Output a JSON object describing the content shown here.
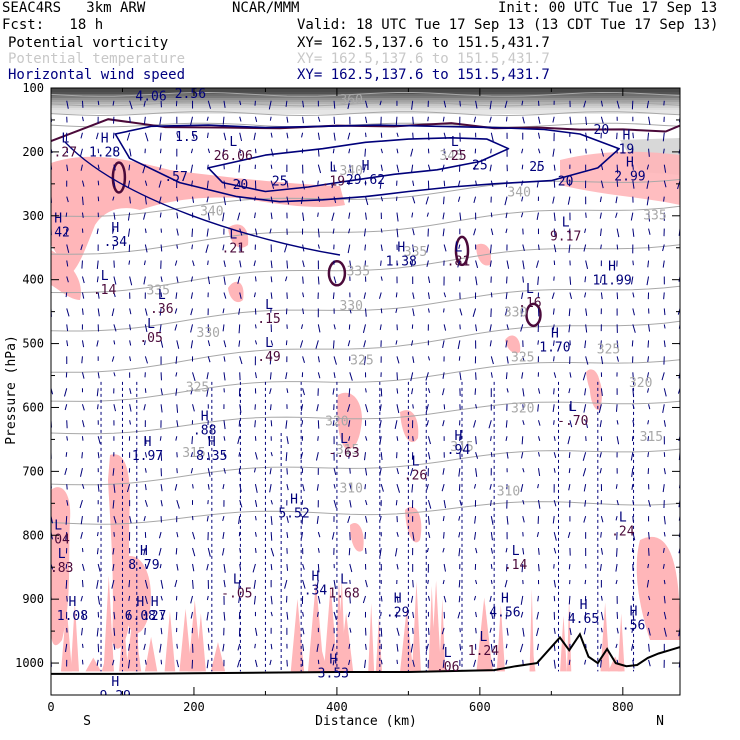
{
  "header": {
    "project": "SEAC4RS   3km ARW",
    "center": "NCAR/MMM",
    "init": "Init: 00 UTC Tue 17 Sep 13",
    "fcst": "Fcst:   18 h",
    "valid": "Valid: 18 UTC Tue 17 Sep 13 (13 CDT Tue 17 Sep 13)",
    "fields": [
      {
        "name": "Potential vorticity",
        "xy": "XY= 162.5,137.6 to 151.5,431.7",
        "color": "#000000"
      },
      {
        "name": "Potential temperature",
        "xy": "XY= 162.5,137.6 to 151.5,431.7",
        "color": "#c8c8c8"
      },
      {
        "name": "Horizontal wind speed",
        "xy": "XY= 162.5,137.6 to 151.5,431.7",
        "color": "#000080"
      }
    ]
  },
  "colors": {
    "pv_shade": "#ffb6b9",
    "theta": "#a8a8a8",
    "wind": "#00007a",
    "pv_contour": "#4b0a3a",
    "terrain": "#000000",
    "strat": "#6a6a6a"
  },
  "chart_data": {
    "type": "cross-section",
    "xlabel": "Distance (km)",
    "ylabel": "Pressure (hPa)",
    "xlim": [
      0,
      880
    ],
    "ylim": [
      1050,
      100
    ],
    "xticks": [
      0,
      200,
      400,
      600,
      800
    ],
    "yticks": [
      100,
      200,
      300,
      400,
      500,
      600,
      700,
      800,
      900,
      1000
    ],
    "end_labels": {
      "left": "S",
      "right": "N"
    },
    "theta_labels": [
      {
        "x": 420,
        "p": 117,
        "text": "360"
      },
      {
        "x": 560,
        "p": 205,
        "text": "345"
      },
      {
        "x": 420,
        "p": 228,
        "text": "340"
      },
      {
        "x": 655,
        "p": 262,
        "text": "340"
      },
      {
        "x": 225,
        "p": 292,
        "text": "340"
      },
      {
        "x": 845,
        "p": 298,
        "text": "335"
      },
      {
        "x": 510,
        "p": 355,
        "text": "335"
      },
      {
        "x": 430,
        "p": 386,
        "text": "335"
      },
      {
        "x": 150,
        "p": 415,
        "text": "335"
      },
      {
        "x": 420,
        "p": 440,
        "text": "330"
      },
      {
        "x": 650,
        "p": 450,
        "text": "330"
      },
      {
        "x": 220,
        "p": 482,
        "text": "330"
      },
      {
        "x": 660,
        "p": 520,
        "text": "325"
      },
      {
        "x": 435,
        "p": 525,
        "text": "325"
      },
      {
        "x": 780,
        "p": 508,
        "text": "325"
      },
      {
        "x": 205,
        "p": 567,
        "text": "325"
      },
      {
        "x": 825,
        "p": 560,
        "text": "320"
      },
      {
        "x": 660,
        "p": 600,
        "text": "320"
      },
      {
        "x": 400,
        "p": 620,
        "text": "320"
      },
      {
        "x": 840,
        "p": 645,
        "text": "315"
      },
      {
        "x": 415,
        "p": 665,
        "text": "315"
      },
      {
        "x": 575,
        "p": 660,
        "text": "315"
      },
      {
        "x": 200,
        "p": 670,
        "text": "315"
      },
      {
        "x": 420,
        "p": 725,
        "text": "310"
      },
      {
        "x": 640,
        "p": 730,
        "text": "310"
      }
    ],
    "wind_labels": [
      {
        "x": 140,
        "p": 112,
        "text": "4.06"
      },
      {
        "x": 195,
        "p": 108,
        "text": "2.56"
      },
      {
        "x": 190,
        "p": 175,
        "text": "1.5"
      },
      {
        "x": 175,
        "p": 238,
        "text": ".57"
      },
      {
        "x": 265,
        "p": 250,
        "text": "20"
      },
      {
        "x": 320,
        "p": 245,
        "text": "25"
      },
      {
        "x": 770,
        "p": 164,
        "text": "20"
      },
      {
        "x": 720,
        "p": 245,
        "text": "20"
      },
      {
        "x": 680,
        "p": 222,
        "text": "25"
      },
      {
        "x": 600,
        "p": 220,
        "text": "25"
      }
    ],
    "extrema": [
      {
        "x": 20,
        "p": 195,
        "kind": "L",
        "value": ".27"
      },
      {
        "x": 75,
        "p": 195,
        "kind": "H",
        "value": "1.28"
      },
      {
        "x": 255,
        "p": 200,
        "kind": "L",
        "value": "26.06"
      },
      {
        "x": 565,
        "p": 200,
        "kind": "L",
        "value": ".25"
      },
      {
        "x": 805,
        "p": 190,
        "kind": "H",
        "value": "19"
      },
      {
        "x": 810,
        "p": 232,
        "kind": "H",
        "value": "2.99"
      },
      {
        "x": 395,
        "p": 240,
        "kind": "L",
        "value": ".19"
      },
      {
        "x": 440,
        "p": 238,
        "kind": "H",
        "value": "29.62"
      },
      {
        "x": 10,
        "p": 320,
        "kind": "H",
        "value": ".42"
      },
      {
        "x": 90,
        "p": 335,
        "kind": "H",
        "value": ".34"
      },
      {
        "x": 255,
        "p": 345,
        "kind": "L",
        "value": ".21"
      },
      {
        "x": 720,
        "p": 326,
        "kind": "L",
        "value": "9.17"
      },
      {
        "x": 490,
        "p": 365,
        "kind": "H",
        "value": "1.38"
      },
      {
        "x": 570,
        "p": 365,
        "kind": "L",
        "value": ".81"
      },
      {
        "x": 785,
        "p": 395,
        "kind": "H",
        "value": "11.99"
      },
      {
        "x": 75,
        "p": 410,
        "kind": "L",
        "value": ".14"
      },
      {
        "x": 155,
        "p": 440,
        "kind": "L",
        "value": ".36"
      },
      {
        "x": 670,
        "p": 430,
        "kind": "L",
        "value": ".16"
      },
      {
        "x": 140,
        "p": 485,
        "kind": "L",
        "value": ".05"
      },
      {
        "x": 305,
        "p": 455,
        "kind": "L",
        "value": ".15"
      },
      {
        "x": 705,
        "p": 500,
        "kind": "H",
        "value": "1.70"
      },
      {
        "x": 305,
        "p": 515,
        "kind": "L",
        "value": ".49"
      },
      {
        "x": 730,
        "p": 615,
        "kind": "L",
        "value": "-.70"
      },
      {
        "x": 215,
        "p": 630,
        "kind": "H",
        "value": ".88"
      },
      {
        "x": 135,
        "p": 670,
        "kind": "H",
        "value": "1.97"
      },
      {
        "x": 225,
        "p": 670,
        "kind": "H",
        "value": "8.35"
      },
      {
        "x": 410,
        "p": 665,
        "kind": "L",
        "value": "-.63"
      },
      {
        "x": 570,
        "p": 660,
        "kind": "H",
        "value": ".94"
      },
      {
        "x": 510,
        "p": 700,
        "kind": "L",
        "value": ".26"
      },
      {
        "x": 340,
        "p": 760,
        "kind": "H",
        "value": "5.52"
      },
      {
        "x": 10,
        "p": 800,
        "kind": "L",
        "value": ".04"
      },
      {
        "x": 800,
        "p": 788,
        "kind": "L",
        "value": ".24"
      },
      {
        "x": 15,
        "p": 845,
        "kind": "L",
        "value": ".83"
      },
      {
        "x": 130,
        "p": 840,
        "kind": "H",
        "value": "8.79"
      },
      {
        "x": 650,
        "p": 840,
        "kind": "L",
        "value": ".14"
      },
      {
        "x": 370,
        "p": 880,
        "kind": "H",
        "value": ".34"
      },
      {
        "x": 410,
        "p": 885,
        "kind": "L",
        "value": "1.68"
      },
      {
        "x": 260,
        "p": 885,
        "kind": "L",
        "value": "-.05"
      },
      {
        "x": 30,
        "p": 920,
        "kind": "H",
        "value": "1.08"
      },
      {
        "x": 125,
        "p": 920,
        "kind": "H",
        "value": "6.08"
      },
      {
        "x": 145,
        "p": 920,
        "kind": "H",
        "value": ".27"
      },
      {
        "x": 485,
        "p": 915,
        "kind": "H",
        "value": ".29"
      },
      {
        "x": 635,
        "p": 915,
        "kind": "H",
        "value": "4.56"
      },
      {
        "x": 745,
        "p": 925,
        "kind": "H",
        "value": "4.65"
      },
      {
        "x": 815,
        "p": 935,
        "kind": "H",
        "value": ".56"
      },
      {
        "x": 605,
        "p": 975,
        "kind": "L",
        "value": "1.24"
      },
      {
        "x": 555,
        "p": 1000,
        "kind": "L",
        "value": ".06"
      },
      {
        "x": 395,
        "p": 1010,
        "kind": "H",
        "value": "3.53"
      },
      {
        "x": 90,
        "p": 1045,
        "kind": "H",
        "value": "9.29"
      }
    ],
    "terrain_km": [
      0,
      100,
      200,
      300,
      400,
      500,
      620,
      650,
      680,
      700,
      712,
      725,
      740,
      752,
      765,
      778,
      790,
      805,
      820,
      835,
      850,
      865,
      880
    ],
    "terrain_hpa": [
      1017,
      1017,
      1016,
      1015,
      1014,
      1014,
      1011,
      1005,
      1000,
      975,
      960,
      980,
      955,
      990,
      1000,
      978,
      1000,
      1005,
      1003,
      992,
      985,
      980,
      975
    ],
    "pv_contour_km": [
      0,
      80,
      160,
      240,
      320,
      400,
      480,
      560,
      620,
      680,
      740,
      800,
      860,
      880
    ],
    "pv_contour_hpa": [
      180,
      152,
      158,
      165,
      160,
      162,
      157,
      158,
      160,
      165,
      162,
      168,
      165,
      162
    ],
    "jet_outer_km": [
      90,
      140,
      220,
      300,
      380,
      460,
      540,
      620,
      690,
      740,
      795,
      765,
      700,
      620,
      560,
      500,
      440,
      380,
      320,
      260,
      180,
      110,
      90
    ],
    "jet_outer_hpa": [
      172,
      160,
      158,
      162,
      160,
      158,
      160,
      162,
      165,
      172,
      195,
      225,
      245,
      250,
      255,
      262,
      270,
      275,
      278,
      270,
      248,
      210,
      172
    ],
    "jet_inner_km": [
      220,
      300,
      380,
      440,
      500,
      560,
      610,
      640,
      600,
      540,
      480,
      420,
      360,
      300,
      240,
      220
    ],
    "jet_inner_hpa": [
      225,
      205,
      195,
      185,
      180,
      178,
      180,
      195,
      215,
      228,
      235,
      245,
      255,
      262,
      248,
      225
    ]
  }
}
